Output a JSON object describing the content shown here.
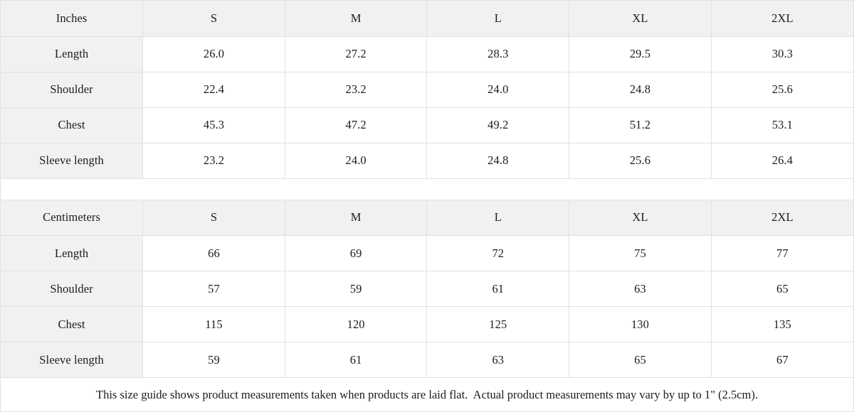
{
  "colors": {
    "header_bg": "#f1f1f1",
    "border": "#e1e1e1",
    "text": "#1c1c1c"
  },
  "tables": [
    {
      "unit_label": "Inches",
      "sizes": [
        "S",
        "M",
        "L",
        "XL",
        "2XL"
      ],
      "rows": [
        {
          "label": "Length",
          "values": [
            "26.0",
            "27.2",
            "28.3",
            "29.5",
            "30.3"
          ]
        },
        {
          "label": "Shoulder",
          "values": [
            "22.4",
            "23.2",
            "24.0",
            "24.8",
            "25.6"
          ]
        },
        {
          "label": "Chest",
          "values": [
            "45.3",
            "47.2",
            "49.2",
            "51.2",
            "53.1"
          ]
        },
        {
          "label": "Sleeve length",
          "values": [
            "23.2",
            "24.0",
            "24.8",
            "25.6",
            "26.4"
          ]
        }
      ]
    },
    {
      "unit_label": "Centimeters",
      "sizes": [
        "S",
        "M",
        "L",
        "XL",
        "2XL"
      ],
      "rows": [
        {
          "label": "Length",
          "values": [
            "66",
            "69",
            "72",
            "75",
            "77"
          ]
        },
        {
          "label": "Shoulder",
          "values": [
            "57",
            "59",
            "61",
            "63",
            "65"
          ]
        },
        {
          "label": "Chest",
          "values": [
            "115",
            "120",
            "125",
            "130",
            "135"
          ]
        },
        {
          "label": "Sleeve length",
          "values": [
            "59",
            "61",
            "63",
            "65",
            "67"
          ]
        }
      ]
    }
  ],
  "footnote": "This size guide shows product measurements taken when products are laid flat.  Actual product measurements may vary by up to 1\" (2.5cm).",
  "chart_data": [
    {
      "type": "table",
      "title": "Size guide (Inches)",
      "columns": [
        "Inches",
        "S",
        "M",
        "L",
        "XL",
        "2XL"
      ],
      "rows": [
        [
          "Length",
          26.0,
          27.2,
          28.3,
          29.5,
          30.3
        ],
        [
          "Shoulder",
          22.4,
          23.2,
          24.0,
          24.8,
          25.6
        ],
        [
          "Chest",
          45.3,
          47.2,
          49.2,
          51.2,
          53.1
        ],
        [
          "Sleeve length",
          23.2,
          24.0,
          24.8,
          25.6,
          26.4
        ]
      ]
    },
    {
      "type": "table",
      "title": "Size guide (Centimeters)",
      "columns": [
        "Centimeters",
        "S",
        "M",
        "L",
        "XL",
        "2XL"
      ],
      "rows": [
        [
          "Length",
          66,
          69,
          72,
          75,
          77
        ],
        [
          "Shoulder",
          57,
          59,
          61,
          63,
          65
        ],
        [
          "Chest",
          115,
          120,
          125,
          130,
          135
        ],
        [
          "Sleeve length",
          59,
          61,
          63,
          65,
          67
        ]
      ]
    }
  ]
}
